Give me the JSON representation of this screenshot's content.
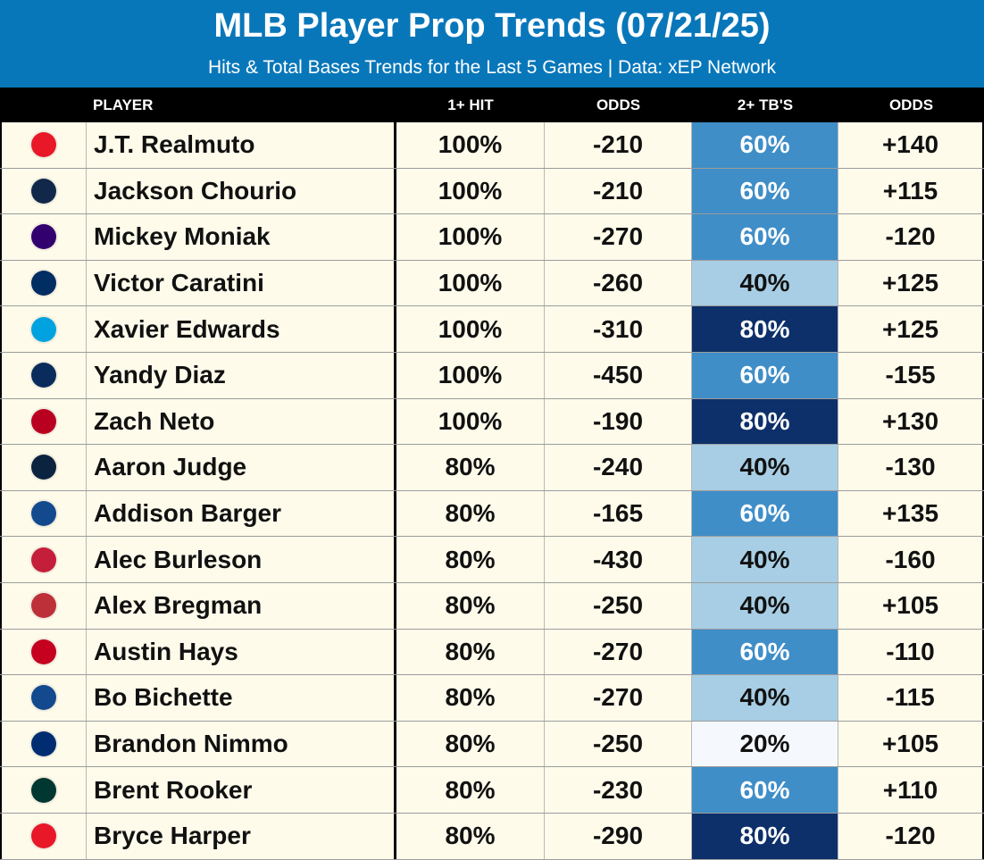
{
  "header": {
    "title": "MLB Player Prop Trends (07/21/25)",
    "subtitle": "Hits & Total Bases Trends for the Last 5 Games | Data: xEP Network"
  },
  "columns": {
    "player": "PLAYER",
    "hit": "1+ HIT",
    "odds1": "ODDS",
    "tb": "2+ TB'S",
    "odds2": "ODDS"
  },
  "tb_colors": {
    "20%": "#f5f9fd",
    "40%": "#a7cee4",
    "60%": "#3f8ec8",
    "80%": "#0d306a"
  },
  "rows": [
    {
      "icon": "phillies-logo-icon",
      "logo_color": "#e81828",
      "player": "J.T. Realmuto",
      "hit": "100%",
      "odds1": "-210",
      "tb": "60%",
      "odds2": "+140"
    },
    {
      "icon": "brewers-logo-icon",
      "logo_color": "#12284b",
      "player": "Jackson Chourio",
      "hit": "100%",
      "odds1": "-210",
      "tb": "60%",
      "odds2": "+115"
    },
    {
      "icon": "rockies-logo-icon",
      "logo_color": "#33006f",
      "player": "Mickey Moniak",
      "hit": "100%",
      "odds1": "-270",
      "tb": "60%",
      "odds2": "-120"
    },
    {
      "icon": "astros-logo-icon",
      "logo_color": "#002d62",
      "player": "Victor Caratini",
      "hit": "100%",
      "odds1": "-260",
      "tb": "40%",
      "odds2": "+125"
    },
    {
      "icon": "marlins-logo-icon",
      "logo_color": "#00a3e0",
      "player": "Xavier Edwards",
      "hit": "100%",
      "odds1": "-310",
      "tb": "80%",
      "odds2": "+125"
    },
    {
      "icon": "rays-logo-icon",
      "logo_color": "#092c5c",
      "player": "Yandy Diaz",
      "hit": "100%",
      "odds1": "-450",
      "tb": "60%",
      "odds2": "-155"
    },
    {
      "icon": "angels-logo-icon",
      "logo_color": "#ba0021",
      "player": "Zach Neto",
      "hit": "100%",
      "odds1": "-190",
      "tb": "80%",
      "odds2": "+130"
    },
    {
      "icon": "yankees-logo-icon",
      "logo_color": "#0c2340",
      "player": "Aaron Judge",
      "hit": "80%",
      "odds1": "-240",
      "tb": "40%",
      "odds2": "-130"
    },
    {
      "icon": "blue-jays-logo-icon",
      "logo_color": "#134a8e",
      "player": "Addison Barger",
      "hit": "80%",
      "odds1": "-165",
      "tb": "60%",
      "odds2": "+135"
    },
    {
      "icon": "cardinals-logo-icon",
      "logo_color": "#c41e3a",
      "player": "Alec Burleson",
      "hit": "80%",
      "odds1": "-430",
      "tb": "40%",
      "odds2": "-160"
    },
    {
      "icon": "red-sox-logo-icon",
      "logo_color": "#bd3039",
      "player": "Alex Bregman",
      "hit": "80%",
      "odds1": "-250",
      "tb": "40%",
      "odds2": "+105"
    },
    {
      "icon": "reds-logo-icon",
      "logo_color": "#c6011f",
      "player": "Austin Hays",
      "hit": "80%",
      "odds1": "-270",
      "tb": "60%",
      "odds2": "-110"
    },
    {
      "icon": "blue-jays-logo-icon",
      "logo_color": "#134a8e",
      "player": "Bo Bichette",
      "hit": "80%",
      "odds1": "-270",
      "tb": "40%",
      "odds2": "-115"
    },
    {
      "icon": "mets-logo-icon",
      "logo_color": "#002d72",
      "player": "Brandon Nimmo",
      "hit": "80%",
      "odds1": "-250",
      "tb": "20%",
      "odds2": "+105"
    },
    {
      "icon": "athletics-logo-icon",
      "logo_color": "#003831",
      "player": "Brent Rooker",
      "hit": "80%",
      "odds1": "-230",
      "tb": "60%",
      "odds2": "+110"
    },
    {
      "icon": "phillies-logo-icon",
      "logo_color": "#e81828",
      "player": "Bryce Harper",
      "hit": "80%",
      "odds1": "-290",
      "tb": "80%",
      "odds2": "-120"
    }
  ]
}
